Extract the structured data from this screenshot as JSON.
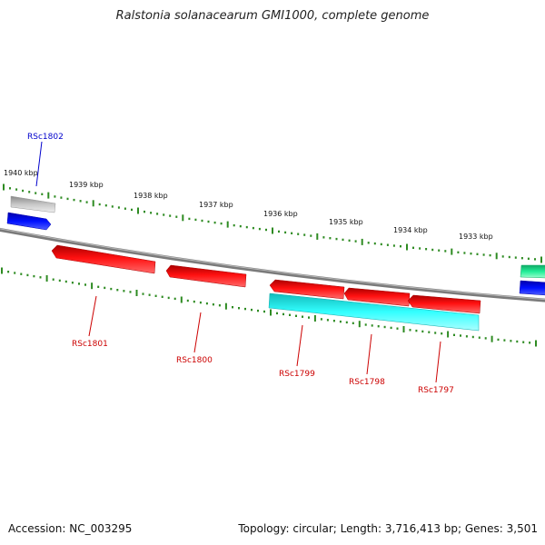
{
  "title": "Ralstonia solanacearum GMI1000, complete genome",
  "footer": {
    "accession": "Accession: NC_003295",
    "summary": "Topology: circular; Length: 3,716,413 bp; Genes: 3,501"
  },
  "scale_labels": [
    "1940 kbp",
    "1939 kbp",
    "1938 kbp",
    "1937 kbp",
    "1936 kbp",
    "1935 kbp",
    "1934 kbp",
    "1933 kbp"
  ],
  "genes": [
    {
      "label": "RSc1802",
      "color": "#0000cc"
    },
    {
      "label": "RSc1801",
      "color": "#cc0000"
    },
    {
      "label": "RSc1800",
      "color": "#cc0000"
    },
    {
      "label": "RSc1799",
      "color": "#cc0000"
    },
    {
      "label": "RSc1798",
      "color": "#cc0000"
    },
    {
      "label": "RSc1797",
      "color": "#cc0000"
    }
  ],
  "colors": {
    "backbone": "#808080",
    "ticks": "#2e8b22",
    "forward_gene": "#ff0000",
    "blue_feature": "#0010ff",
    "cyan_feature": "#33ffff",
    "gray_feature": "#b0b0b0",
    "green_feature": "#22ee99"
  }
}
